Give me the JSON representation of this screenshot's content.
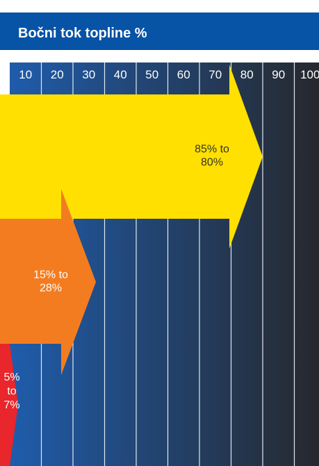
{
  "chart_data": {
    "type": "bar",
    "title": "Bočni tok topline %",
    "ticks": [
      "10",
      "20",
      "30",
      "40",
      "50",
      "60",
      "70",
      "80",
      "90",
      "100"
    ],
    "xlim": [
      0,
      100
    ],
    "grid": true,
    "series": [
      {
        "label": [
          "85% to",
          "80%"
        ],
        "low": 80,
        "high": 85,
        "color": "#ffe000",
        "text_color": "#333333"
      },
      {
        "label": [
          "15% to",
          "28%"
        ],
        "low": 15,
        "high": 28,
        "color": "#f47c20",
        "text_color": "#ffffff"
      },
      {
        "label": [
          "5%",
          "to",
          "7%"
        ],
        "low": 5,
        "high": 7,
        "color": "#e8262b",
        "text_color": "#ffffff"
      }
    ]
  },
  "colors": {
    "header": "#0753a6",
    "column_top": "#1f5cab",
    "column_bottom": "#26282d",
    "grid_line": "#e3e8f0"
  }
}
